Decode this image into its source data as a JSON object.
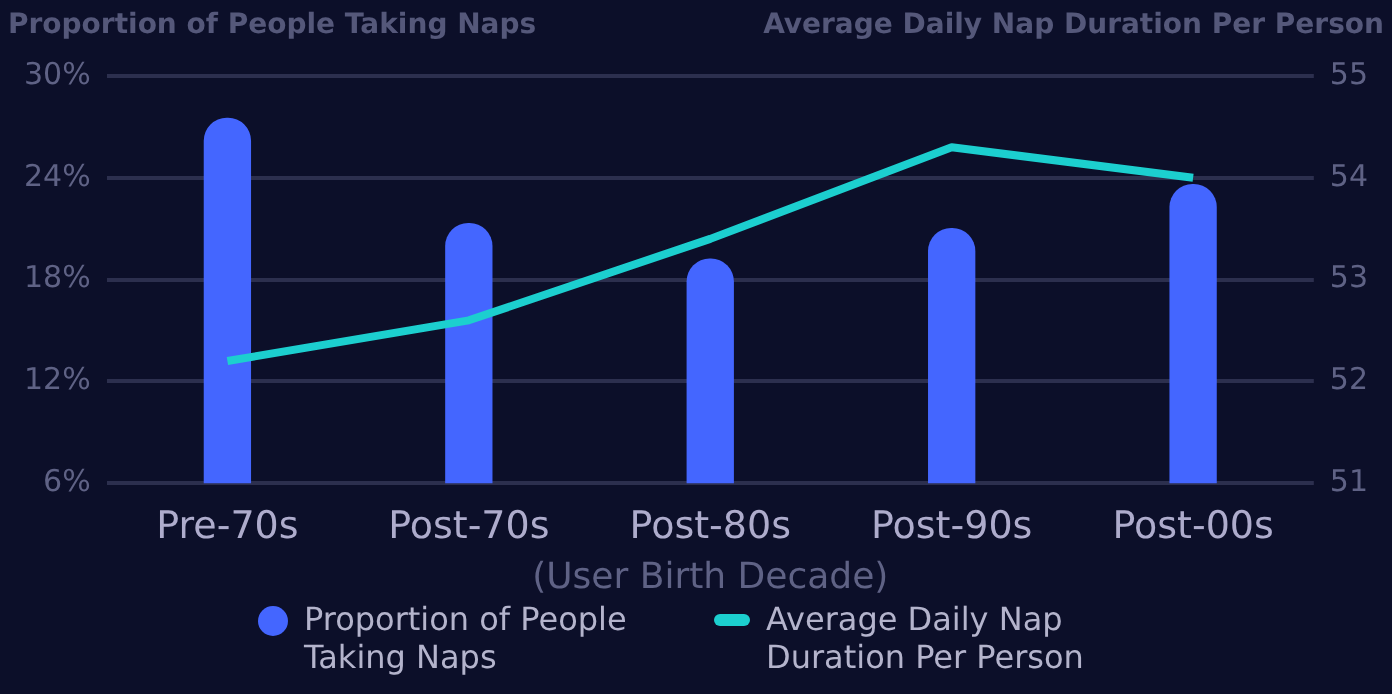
{
  "chart_data": {
    "type": "bar",
    "ylabel": "Proportion of People Taking Naps",
    "y2label": "Average Daily Nap Duration Per Person",
    "xlabel": "(User Birth Decade)",
    "categories": [
      "Pre-70s",
      "Post-70s",
      "Post-80s",
      "Post-90s",
      "Post-00s"
    ],
    "series": [
      {
        "name": "Proportion of People Taking Naps",
        "color": "#4466ff",
        "values": [
          27.5,
          21.3,
          19.2,
          21.0,
          23.6
        ]
      },
      {
        "name": "Average Daily Nap Duration Per Person",
        "type": "line",
        "axis": "y2",
        "color": "#1ccfcf",
        "marker": "none",
        "values": [
          52.2,
          52.6,
          53.4,
          54.3,
          54.0
        ]
      }
    ],
    "ylim": [
      6,
      30
    ],
    "yticks": [
      {
        "value": 6,
        "label": "6%"
      },
      {
        "value": 12,
        "label": "12%"
      },
      {
        "value": 18,
        "label": "18%"
      },
      {
        "value": 24,
        "label": "24%"
      },
      {
        "value": 30,
        "label": "30%"
      }
    ],
    "y2lim": [
      51,
      55
    ],
    "y2ticks": [
      51,
      52,
      53,
      54,
      55
    ],
    "grid": "y",
    "legend": "bottom"
  }
}
